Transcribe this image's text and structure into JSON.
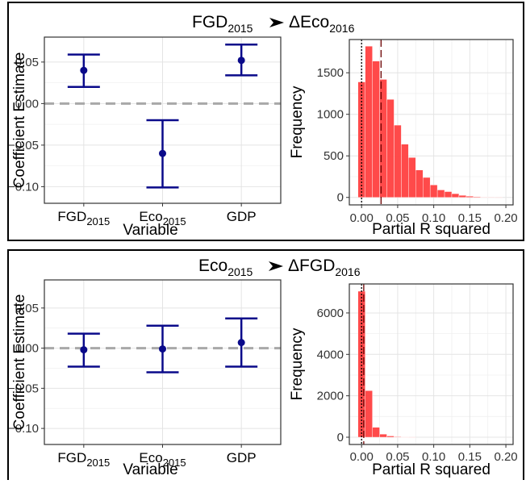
{
  "chart_data": [
    {
      "title_main": "FGD",
      "title_main_sub": "2015",
      "title_target": "ΔEco",
      "title_target_sub": "2016",
      "coef": {
        "type": "errorbar",
        "xlabel": "Variable",
        "ylabel": "Coefficient Estimate",
        "categories": [
          {
            "main": "FGD",
            "sub": "2015"
          },
          {
            "main": "Eco",
            "sub": "2015"
          },
          {
            "main": "GDP",
            "sub": ""
          }
        ],
        "estimate": [
          0.04,
          -0.06,
          0.052
        ],
        "lower": [
          0.02,
          -0.101,
          0.034
        ],
        "upper": [
          0.059,
          -0.02,
          0.071
        ],
        "ylim": [
          -0.12,
          0.08
        ],
        "yticks": [
          -0.1,
          -0.05,
          0.0,
          0.05
        ],
        "ytick_labels": [
          "−0.10",
          "−0.05",
          "0.00",
          "0.05"
        ],
        "ref_line": 0,
        "color": "#0a0a8a"
      },
      "hist": {
        "type": "histogram",
        "xlabel": "Partial R squared",
        "ylabel": "Frequency",
        "bin_width": 0.01,
        "bin_start": -0.005,
        "counts": [
          1390,
          1820,
          1640,
          1420,
          1180,
          870,
          640,
          480,
          330,
          240,
          150,
          90,
          70,
          45,
          25,
          15,
          8,
          4,
          2,
          1
        ],
        "xlim": [
          -0.017,
          0.21
        ],
        "ylim": [
          -90,
          1900
        ],
        "xticks": [
          0.0,
          0.05,
          0.1,
          0.15,
          0.2
        ],
        "xtick_labels": [
          "0.00",
          "0.05",
          "0.10",
          "0.15",
          "0.20"
        ],
        "yticks": [
          0,
          500,
          1000,
          1500
        ],
        "ytick_labels": [
          "0",
          "500",
          "1000",
          "1500"
        ],
        "vline_dotted": 0.0,
        "vline_dashed": 0.027,
        "color": "#ff4040"
      }
    },
    {
      "title_main": "Eco",
      "title_main_sub": "2015",
      "title_target": "ΔFGD",
      "title_target_sub": "2016",
      "coef": {
        "type": "errorbar",
        "xlabel": "Variable",
        "ylabel": "Coefficient Estimate",
        "categories": [
          {
            "main": "FGD",
            "sub": "2015"
          },
          {
            "main": "Eco",
            "sub": "2015"
          },
          {
            "main": "GDP",
            "sub": ""
          }
        ],
        "estimate": [
          -0.002,
          -0.001,
          0.007
        ],
        "lower": [
          -0.023,
          -0.03,
          -0.023
        ],
        "upper": [
          0.018,
          0.028,
          0.037
        ],
        "ylim": [
          -0.12,
          0.085
        ],
        "yticks": [
          -0.1,
          -0.05,
          0.0,
          0.05
        ],
        "ytick_labels": [
          "−0.10",
          "−0.05",
          "0.00",
          "0.05"
        ],
        "ref_line": 0,
        "color": "#0a0a8a"
      },
      "hist": {
        "type": "histogram",
        "xlabel": "Partial R squared",
        "ylabel": "Frequency",
        "bin_width": 0.01,
        "bin_start": -0.005,
        "counts": [
          7050,
          2250,
          480,
          150,
          60,
          25,
          10,
          5
        ],
        "xlim": [
          -0.017,
          0.21
        ],
        "ylim": [
          -350,
          7400
        ],
        "xticks": [
          0.0,
          0.05,
          0.1,
          0.15,
          0.2
        ],
        "xtick_labels": [
          "0.00",
          "0.05",
          "0.10",
          "0.15",
          "0.20"
        ],
        "yticks": [
          0,
          2000,
          4000,
          6000
        ],
        "ytick_labels": [
          "0",
          "2000",
          "4000",
          "6000"
        ],
        "vline_dotted": 0.0,
        "vline_dashed": 0.003,
        "color": "#ff4040"
      }
    }
  ]
}
